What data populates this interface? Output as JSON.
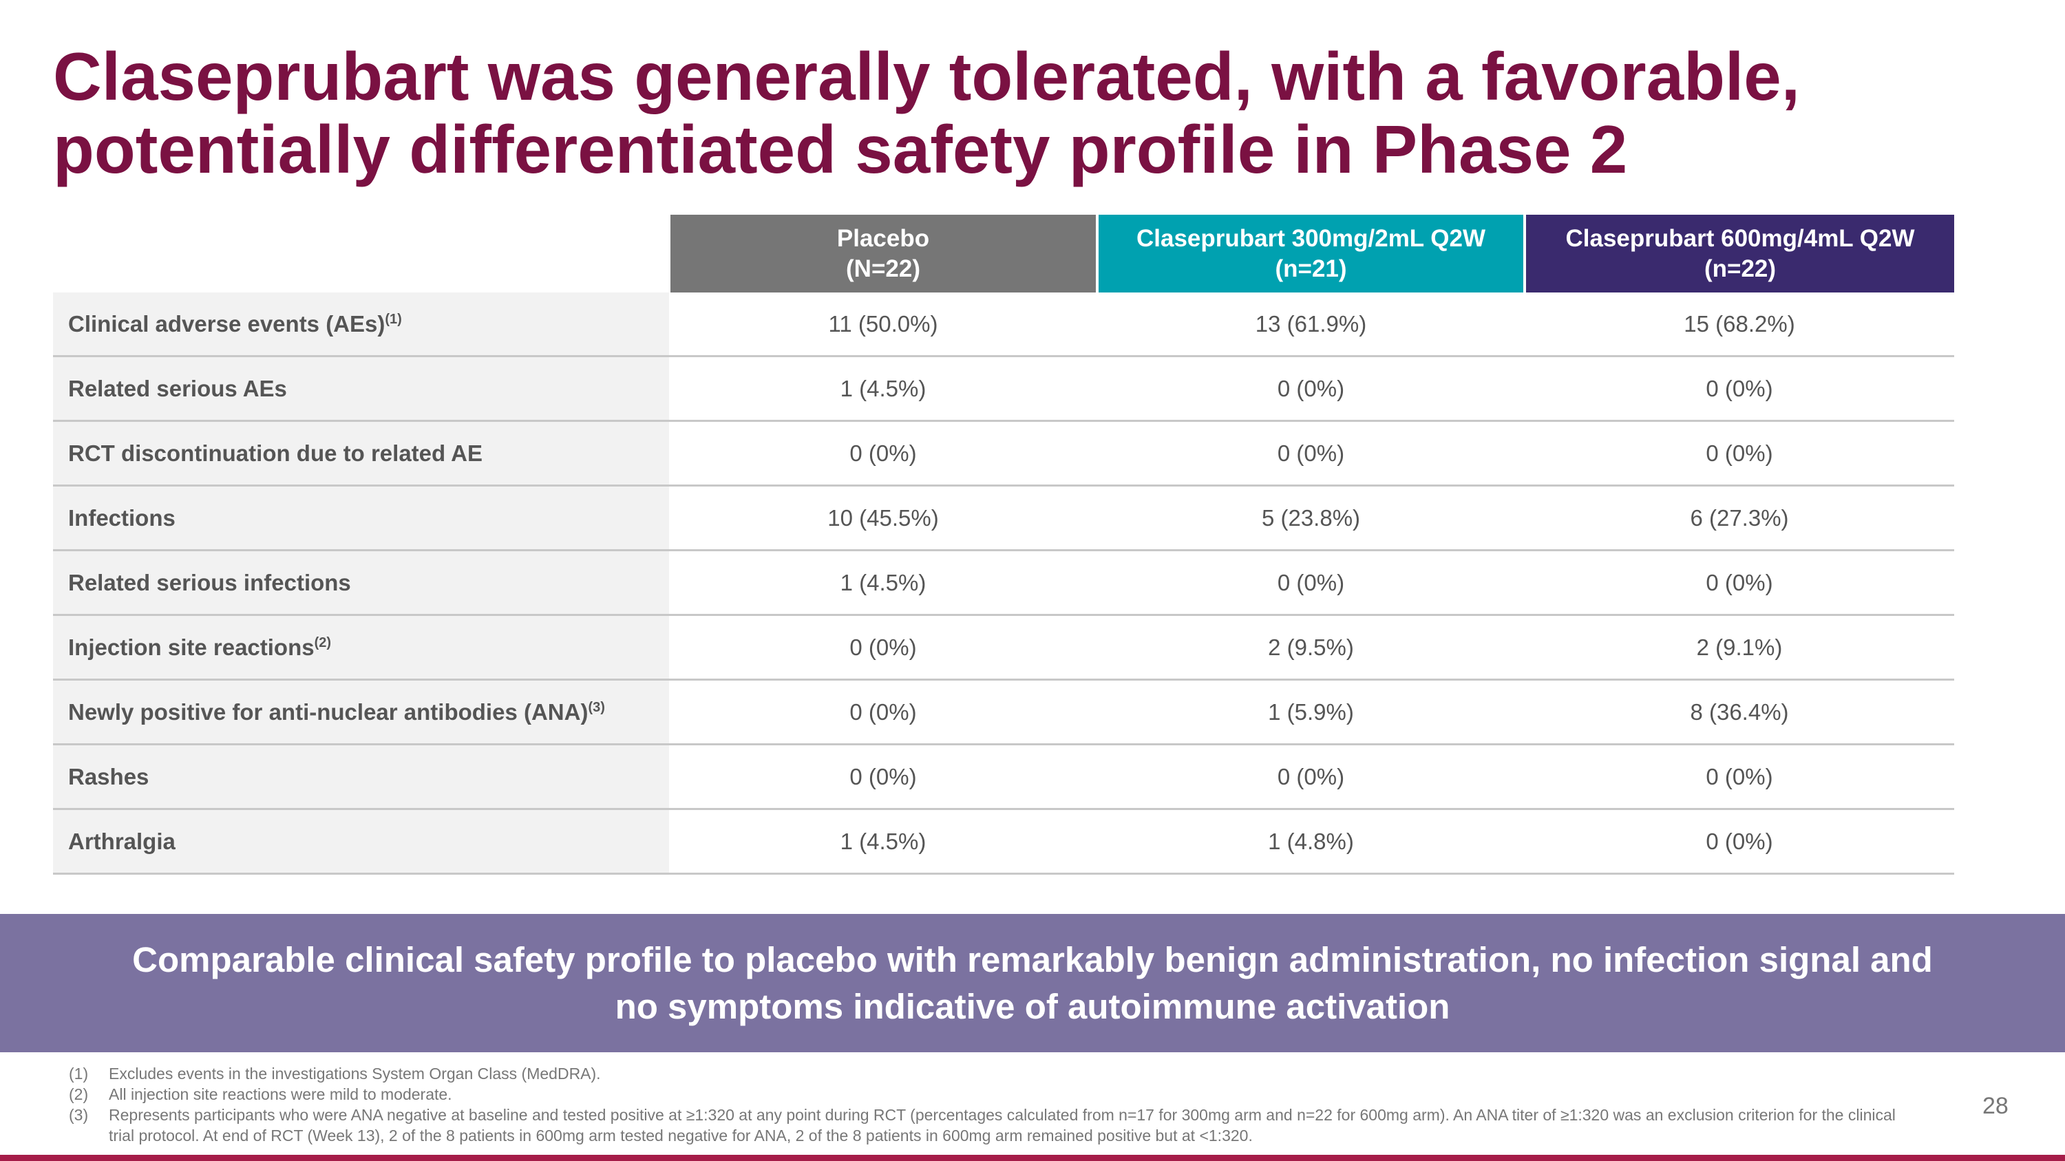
{
  "title": {
    "line1": "Claseprubart was generally  tolerated, with a favorable,",
    "line2": "potentially differentiated safety profile in Phase 2"
  },
  "table": {
    "headers": [
      {
        "name": "Placebo",
        "n": "(N=22)",
        "color": "#767676"
      },
      {
        "name": "Claseprubart 300mg/2mL Q2W",
        "n": "(n=21)",
        "color": "#00a1b0"
      },
      {
        "name": "Claseprubart 600mg/4mL Q2W",
        "n": "(n=22)",
        "color": "#3a2a6e"
      }
    ],
    "rows": [
      {
        "label": "Clinical adverse events (AEs)",
        "sup": "(1)",
        "values": [
          "11 (50.0%)",
          "13 (61.9%)",
          "15 (68.2%)"
        ]
      },
      {
        "label": "Related serious AEs",
        "sup": "",
        "values": [
          "1 (4.5%)",
          "0 (0%)",
          "0 (0%)"
        ]
      },
      {
        "label": "RCT discontinuation due to related AE",
        "sup": "",
        "values": [
          "0 (0%)",
          "0 (0%)",
          "0 (0%)"
        ]
      },
      {
        "label": "Infections",
        "sup": "",
        "values": [
          "10 (45.5%)",
          "5 (23.8%)",
          "6 (27.3%)"
        ]
      },
      {
        "label": "Related serious infections",
        "sup": "",
        "values": [
          "1 (4.5%)",
          "0 (0%)",
          "0 (0%)"
        ]
      },
      {
        "label": "Injection site reactions",
        "sup": "(2)",
        "values": [
          "0 (0%)",
          "2 (9.5%)",
          "2 (9.1%)"
        ]
      },
      {
        "label": "Newly positive for anti-nuclear antibodies (ANA)",
        "sup": "(3)",
        "values": [
          "0 (0%)",
          "1 (5.9%)",
          "8 (36.4%)"
        ]
      },
      {
        "label": "Rashes",
        "sup": "",
        "values": [
          "0 (0%)",
          "0 (0%)",
          "0 (0%)"
        ]
      },
      {
        "label": "Arthralgia",
        "sup": "",
        "values": [
          "1 (4.5%)",
          "1 (4.8%)",
          "0 (0%)"
        ]
      }
    ]
  },
  "banner": {
    "line1": "Comparable clinical safety profile to placebo with remarkably benign administration, no infection signal and",
    "line2": "no symptoms indicative of autoimmune activation"
  },
  "footnotes": [
    {
      "num": "(1)",
      "text": "Excludes events in the investigations System Organ Class (MedDRA)."
    },
    {
      "num": "(2)",
      "text": "All injection site reactions were mild to moderate."
    },
    {
      "num": "(3)",
      "text": "Represents participants who were ANA negative at baseline and tested positive at ≥1:320 at any point during RCT (percentages calculated from n=17 for 300mg arm and n=22 for 600mg arm). An ANA titer of ≥1:320 was an exclusion criterion for the clinical trial protocol. At end of RCT (Week 13), 2 of the 8 patients in 600mg arm tested negative for ANA, 2 of the 8 patients in 600mg arm remained positive but at <1:320."
    }
  ],
  "page_number": "28",
  "colors": {
    "title": "#7a1142",
    "banner": "#7b72a0",
    "bottom_bar": "#a51c48"
  }
}
